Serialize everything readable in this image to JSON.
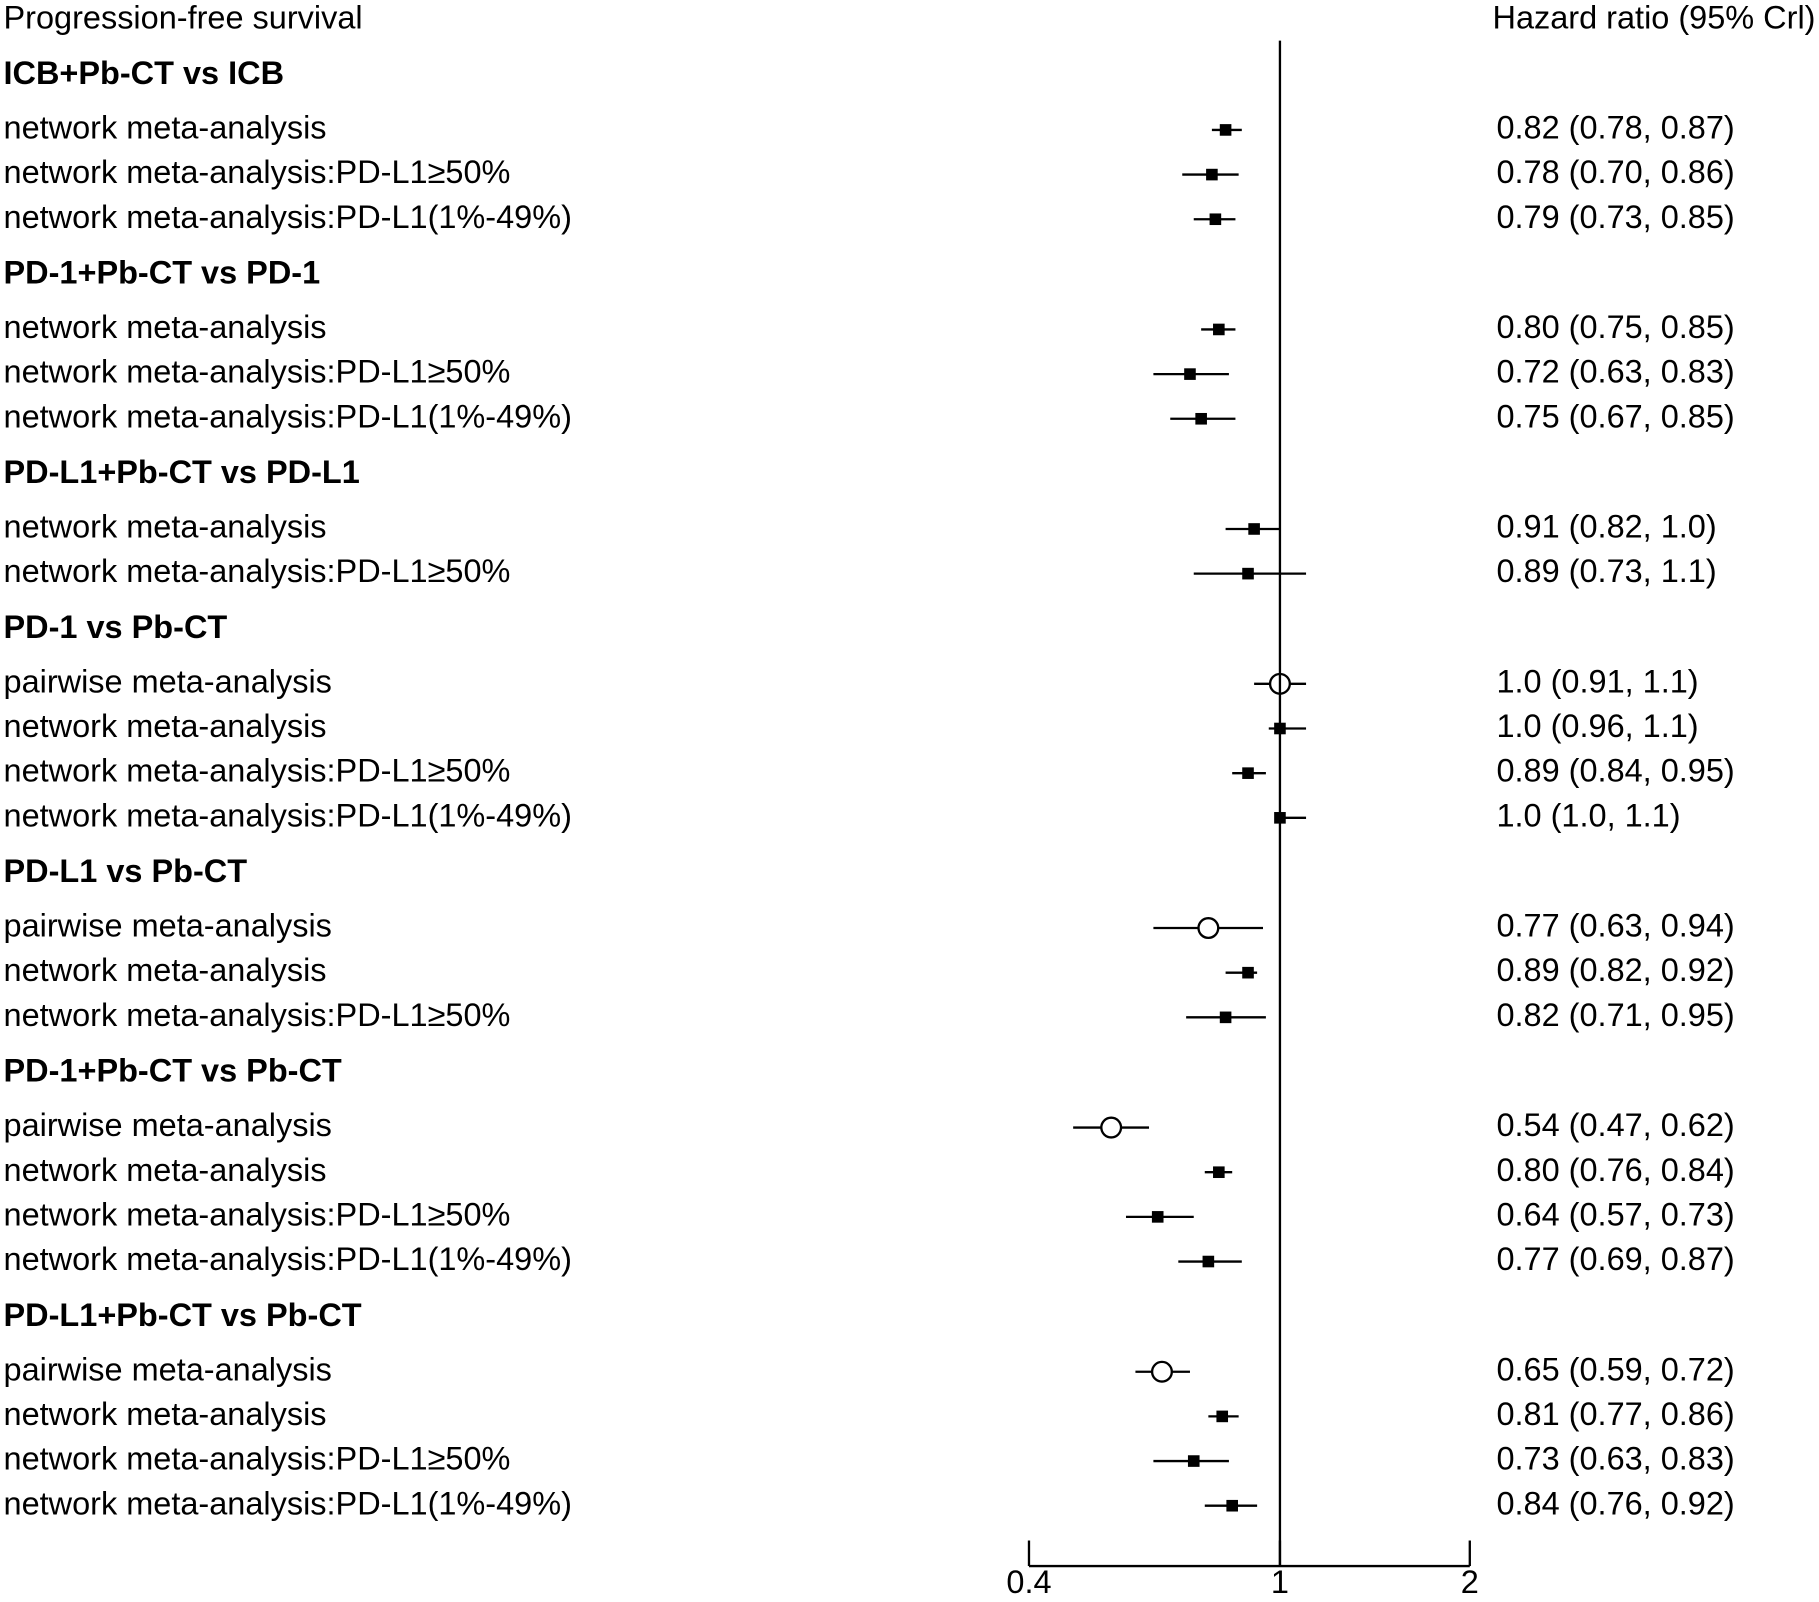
{
  "chart_data": {
    "type": "forest",
    "title": "Progression-free survival",
    "column_header": "Hazard ratio (95% Crl)",
    "log_scale": true,
    "xlim": [
      0.4,
      2
    ],
    "xticks": [
      0.4,
      1,
      2
    ],
    "reference": 1,
    "groups": [
      {
        "name": "ICB+Pb-CT vs ICB",
        "rows": [
          {
            "label": "network meta-analysis",
            "value": 0.82,
            "lower": 0.78,
            "upper": 0.87,
            "value_label": "0.82 (0.78, 0.87)",
            "marker": "filled"
          },
          {
            "label": "network meta-analysis:PD-L1≥50%",
            "value": 0.78,
            "lower": 0.7,
            "upper": 0.86,
            "value_label": "0.78 (0.70, 0.86)",
            "marker": "filled"
          },
          {
            "label": "network meta-analysis:PD-L1(1%-49%)",
            "value": 0.79,
            "lower": 0.73,
            "upper": 0.85,
            "value_label": "0.79 (0.73, 0.85)",
            "marker": "filled"
          }
        ]
      },
      {
        "name": "PD-1+Pb-CT vs PD-1",
        "rows": [
          {
            "label": "network meta-analysis",
            "value": 0.8,
            "lower": 0.75,
            "upper": 0.85,
            "value_label": "0.80 (0.75, 0.85)",
            "marker": "filled"
          },
          {
            "label": "network meta-analysis:PD-L1≥50%",
            "value": 0.72,
            "lower": 0.63,
            "upper": 0.83,
            "value_label": "0.72 (0.63, 0.83)",
            "marker": "filled"
          },
          {
            "label": "network meta-analysis:PD-L1(1%-49%)",
            "value": 0.75,
            "lower": 0.67,
            "upper": 0.85,
            "value_label": "0.75 (0.67, 0.85)",
            "marker": "filled"
          }
        ]
      },
      {
        "name": "PD-L1+Pb-CT vs PD-L1",
        "rows": [
          {
            "label": "network meta-analysis",
            "value": 0.91,
            "lower": 0.82,
            "upper": 1.0,
            "value_label": "0.91 (0.82, 1.0)",
            "marker": "filled"
          },
          {
            "label": "network meta-analysis:PD-L1≥50%",
            "value": 0.89,
            "lower": 0.73,
            "upper": 1.1,
            "value_label": "0.89 (0.73, 1.1)",
            "marker": "filled"
          }
        ]
      },
      {
        "name": "PD-1 vs Pb-CT",
        "rows": [
          {
            "label": "pairwise meta-analysis",
            "value": 1.0,
            "lower": 0.91,
            "upper": 1.1,
            "value_label": "1.0 (0.91, 1.1)",
            "marker": "open"
          },
          {
            "label": "network meta-analysis",
            "value": 1.0,
            "lower": 0.96,
            "upper": 1.1,
            "value_label": "1.0 (0.96, 1.1)",
            "marker": "filled"
          },
          {
            "label": "network meta-analysis:PD-L1≥50%",
            "value": 0.89,
            "lower": 0.84,
            "upper": 0.95,
            "value_label": "0.89 (0.84, 0.95)",
            "marker": "filled"
          },
          {
            "label": "network meta-analysis:PD-L1(1%-49%)",
            "value": 1.0,
            "lower": 1.0,
            "upper": 1.1,
            "value_label": "1.0 (1.0, 1.1)",
            "marker": "filled"
          }
        ]
      },
      {
        "name": "PD-L1 vs Pb-CT",
        "rows": [
          {
            "label": "pairwise meta-analysis",
            "value": 0.77,
            "lower": 0.63,
            "upper": 0.94,
            "value_label": "0.77 (0.63, 0.94)",
            "marker": "open"
          },
          {
            "label": "network meta-analysis",
            "value": 0.89,
            "lower": 0.82,
            "upper": 0.92,
            "value_label": "0.89 (0.82, 0.92)",
            "marker": "filled"
          },
          {
            "label": "network meta-analysis:PD-L1≥50%",
            "value": 0.82,
            "lower": 0.71,
            "upper": 0.95,
            "value_label": "0.82 (0.71, 0.95)",
            "marker": "filled"
          }
        ]
      },
      {
        "name": "PD-1+Pb-CT vs Pb-CT",
        "rows": [
          {
            "label": "pairwise meta-analysis",
            "value": 0.54,
            "lower": 0.47,
            "upper": 0.62,
            "value_label": "0.54 (0.47, 0.62)",
            "marker": "open"
          },
          {
            "label": "network meta-analysis",
            "value": 0.8,
            "lower": 0.76,
            "upper": 0.84,
            "value_label": "0.80 (0.76, 0.84)",
            "marker": "filled"
          },
          {
            "label": "network meta-analysis:PD-L1≥50%",
            "value": 0.64,
            "lower": 0.57,
            "upper": 0.73,
            "value_label": "0.64 (0.57, 0.73)",
            "marker": "filled"
          },
          {
            "label": "network meta-analysis:PD-L1(1%-49%)",
            "value": 0.77,
            "lower": 0.69,
            "upper": 0.87,
            "value_label": "0.77 (0.69, 0.87)",
            "marker": "filled"
          }
        ]
      },
      {
        "name": "PD-L1+Pb-CT vs Pb-CT",
        "rows": [
          {
            "label": "pairwise meta-analysis",
            "value": 0.65,
            "lower": 0.59,
            "upper": 0.72,
            "value_label": "0.65 (0.59, 0.72)",
            "marker": "open"
          },
          {
            "label": "network meta-analysis",
            "value": 0.81,
            "lower": 0.77,
            "upper": 0.86,
            "value_label": "0.81 (0.77, 0.86)",
            "marker": "filled"
          },
          {
            "label": "network meta-analysis:PD-L1≥50%",
            "value": 0.73,
            "lower": 0.63,
            "upper": 0.83,
            "value_label": "0.73 (0.63, 0.83)",
            "marker": "filled"
          },
          {
            "label": "network meta-analysis:PD-L1(1%-49%)",
            "value": 0.84,
            "lower": 0.76,
            "upper": 0.92,
            "value_label": "0.84 (0.76, 0.92)",
            "marker": "filled"
          }
        ]
      }
    ]
  }
}
